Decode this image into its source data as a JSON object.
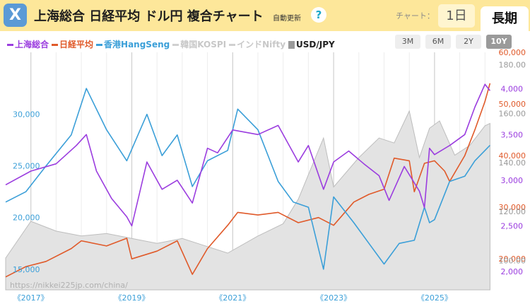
{
  "header": {
    "logo": "X",
    "title": "上海総合 日経平均 ドル円 複合チャート",
    "auto_update": "自動更新",
    "help": "?",
    "chart_label": "チャート：",
    "tab_short": "1日",
    "tab_long": "長期"
  },
  "legend": [
    {
      "label": "上海総合",
      "color": "#9b3ddf",
      "enabled": true,
      "marker": "line"
    },
    {
      "label": "日経平均",
      "color": "#e05a2a",
      "enabled": true,
      "marker": "line"
    },
    {
      "label": "香港HangSeng",
      "color": "#3b9fd8",
      "enabled": true,
      "marker": "line"
    },
    {
      "label": "韓国KOSPI",
      "color": "#d0d0d0",
      "enabled": false,
      "marker": "line"
    },
    {
      "label": "インドNifty",
      "color": "#d0d0d0",
      "enabled": false,
      "marker": "line"
    },
    {
      "label": "USD/JPY",
      "color": "#9a9a9a",
      "enabled": true,
      "marker": "box"
    }
  ],
  "range_buttons": [
    {
      "label": "3M",
      "active": false
    },
    {
      "label": "6M",
      "active": false
    },
    {
      "label": "2Y",
      "active": false
    },
    {
      "label": "10Y",
      "active": true
    }
  ],
  "watermark": "https://nikkei225jp.com/china/",
  "chart_data": {
    "type": "line",
    "x_range": [
      "2016-07",
      "2026-02"
    ],
    "x_ticks": [
      "《2017》",
      "《2019》",
      "《2021》",
      "《2023》",
      "《2025》"
    ],
    "hangseng_axis": {
      "ticks": [
        "15,000",
        "20,000",
        "25,000",
        "30,000"
      ],
      "range": [
        13000,
        36000
      ],
      "color": "#3b9fd8"
    },
    "shanghai_axis": {
      "ticks": [
        "2,000",
        "2,500",
        "3,000",
        "3,500",
        "4,000"
      ],
      "range": [
        1800,
        4400
      ],
      "color": "#9b3ddf"
    },
    "nikkei_axis": {
      "ticks": [
        "20,000",
        "30,000",
        "40,000",
        "50,000",
        "60,000"
      ],
      "range": [
        14000,
        60000
      ],
      "color": "#e05a2a"
    },
    "usdjpy_axis": {
      "ticks": [
        "100.00",
        "120.00",
        "140.00",
        "160.00",
        "180.00"
      ],
      "range": [
        88,
        185
      ],
      "color": "#999999"
    },
    "series": [
      {
        "name": "上海総合",
        "color": "#9b3ddf",
        "x": [
          2016.5,
          2017.0,
          2017.5,
          2017.9,
          2018.1,
          2018.3,
          2018.6,
          2018.9,
          2019.0,
          2019.3,
          2019.6,
          2019.9,
          2020.2,
          2020.5,
          2020.7,
          2021.0,
          2021.5,
          2021.9,
          2022.3,
          2022.5,
          2022.8,
          2023.0,
          2023.3,
          2023.6,
          2023.9,
          2024.1,
          2024.4,
          2024.7,
          2024.8,
          2024.9,
          2025.0,
          2025.3,
          2025.6,
          2025.8,
          2026.0,
          2026.1
        ],
        "values": [
          2950,
          3100,
          3180,
          3380,
          3500,
          3100,
          2800,
          2600,
          2500,
          3200,
          2900,
          3000,
          2750,
          3350,
          3300,
          3550,
          3500,
          3600,
          3200,
          3380,
          2900,
          3200,
          3320,
          3180,
          3050,
          2780,
          3150,
          2880,
          2700,
          3350,
          3280,
          3380,
          3500,
          3800,
          4050,
          3980
        ]
      },
      {
        "name": "日経平均",
        "color": "#e05a2a",
        "x": [
          2016.5,
          2016.9,
          2017.3,
          2017.8,
          2018.0,
          2018.5,
          2018.9,
          2019.0,
          2019.5,
          2019.9,
          2020.2,
          2020.5,
          2020.9,
          2021.1,
          2021.5,
          2021.9,
          2022.3,
          2022.7,
          2023.0,
          2023.4,
          2023.7,
          2024.0,
          2024.2,
          2024.5,
          2024.6,
          2024.8,
          2025.0,
          2025.2,
          2025.3,
          2025.6,
          2025.8,
          2026.0,
          2026.1
        ],
        "values": [
          16500,
          18500,
          19500,
          22000,
          23500,
          22500,
          24000,
          20000,
          21500,
          23500,
          17000,
          22000,
          26500,
          29000,
          28500,
          29000,
          27000,
          28000,
          26500,
          31000,
          32500,
          33500,
          39500,
          39000,
          33000,
          38500,
          39000,
          37000,
          35000,
          40000,
          45000,
          50500,
          54000
        ]
      },
      {
        "name": "香港HangSeng",
        "color": "#3b9fd8",
        "x": [
          2016.5,
          2016.9,
          2017.3,
          2017.8,
          2018.1,
          2018.5,
          2018.9,
          2019.3,
          2019.6,
          2019.9,
          2020.2,
          2020.5,
          2020.9,
          2021.1,
          2021.5,
          2021.9,
          2022.2,
          2022.5,
          2022.8,
          2023.0,
          2023.4,
          2023.7,
          2024.0,
          2024.3,
          2024.6,
          2024.8,
          2024.9,
          2025.0,
          2025.3,
          2025.6,
          2025.8,
          2026.0,
          2026.1
        ],
        "values": [
          21500,
          22500,
          25000,
          28000,
          32500,
          28500,
          25500,
          30000,
          26000,
          28000,
          23000,
          25500,
          26500,
          30500,
          28500,
          23500,
          21500,
          21000,
          15000,
          22000,
          19500,
          17500,
          15500,
          17500,
          17800,
          21000,
          19500,
          19800,
          23500,
          24000,
          25500,
          26500,
          27000
        ]
      },
      {
        "name": "USD/JPY",
        "color": "#bdbdbd",
        "fill": "#e3e3e3",
        "x": [
          2016.5,
          2016.9,
          2017.0,
          2017.5,
          2018.0,
          2018.5,
          2019.0,
          2019.5,
          2020.0,
          2020.3,
          2020.9,
          2021.5,
          2022.0,
          2022.3,
          2022.8,
          2023.0,
          2023.5,
          2023.9,
          2024.2,
          2024.5,
          2024.7,
          2024.9,
          2025.1,
          2025.4,
          2025.7,
          2026.0,
          2026.1
        ],
        "values": [
          101,
          113,
          116,
          112,
          110,
          111,
          109,
          107,
          109,
          107,
          103,
          110,
          115,
          125,
          150,
          130,
          142,
          150,
          148,
          161,
          142,
          154,
          157,
          143,
          147,
          155,
          156
        ]
      }
    ]
  }
}
